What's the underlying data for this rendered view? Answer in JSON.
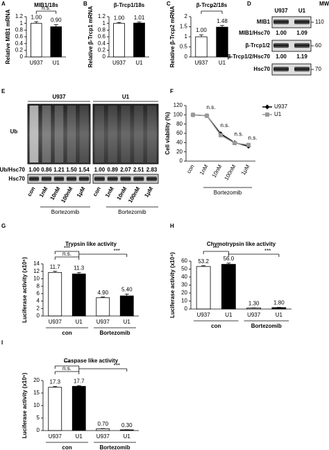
{
  "chart_data": [
    {
      "panel": "A",
      "type": "bar",
      "title": "MIB1/18s",
      "y_label": "Relative MIB1 mRNA",
      "categories": [
        "U937",
        "U1"
      ],
      "values": [
        1.0,
        0.9
      ],
      "value_labels": [
        "1.00",
        "0.90"
      ],
      "errors": [
        0.05,
        0.06
      ],
      "colors": [
        "#ffffff",
        "#000000"
      ],
      "ylim": [
        0,
        1.2
      ],
      "yticks": [
        0,
        0.2,
        0.4,
        0.6,
        0.8,
        1,
        1.2
      ],
      "significance": [
        "n.s."
      ]
    },
    {
      "panel": "B",
      "type": "bar",
      "title": "β-Trcp1/18s",
      "y_label": "Relative β-Trcp1 mRNA",
      "categories": [
        "U937",
        "U1"
      ],
      "values": [
        1.0,
        1.01
      ],
      "value_labels": [
        "1.00",
        "1.01"
      ],
      "errors": [
        0.03,
        0.03
      ],
      "colors": [
        "#ffffff",
        "#000000"
      ],
      "ylim": [
        0,
        1.2
      ],
      "yticks": [
        0,
        0.2,
        0.4,
        0.6,
        0.8,
        1,
        1.2
      ]
    },
    {
      "panel": "C",
      "type": "bar",
      "title": "β-Trcp2/18s",
      "y_label": "Relative β-Trcp2 mRNA",
      "categories": [
        "U937",
        "U1"
      ],
      "values": [
        1.0,
        1.48
      ],
      "value_labels": [
        "1.00",
        "1.48"
      ],
      "errors": [
        0.1,
        0.08
      ],
      "colors": [
        "#ffffff",
        "#000000"
      ],
      "ylim": [
        0,
        2
      ],
      "yticks": [
        0,
        0.5,
        1,
        1.5,
        2
      ],
      "significance": [
        "*"
      ]
    },
    {
      "panel": "F",
      "type": "line",
      "y_label": "Cell viability (%)",
      "x_label": "Bortezomib",
      "categories": [
        "con",
        "1nM",
        "10nM",
        "100nM",
        "1μM"
      ],
      "series": [
        {
          "name": "U937",
          "color": "#000000",
          "marker": "diamond",
          "values": [
            100,
            98,
            59,
            40,
            32
          ]
        },
        {
          "name": "U1",
          "color": "#999999",
          "marker": "square",
          "values": [
            100,
            98,
            56,
            39,
            35
          ]
        }
      ],
      "ylim": [
        0,
        120
      ],
      "yticks": [
        0,
        20,
        40,
        60,
        80,
        100,
        120
      ],
      "annotations": [
        "n.s.",
        "n.s.",
        "n.s.",
        "n.s."
      ],
      "legend": "right"
    },
    {
      "panel": "G",
      "type": "bar",
      "title": "Trypsin like activity",
      "y_label": "Luciferase activity (x10⁵)",
      "categories": [
        "U937",
        "U1",
        "U937",
        "U1"
      ],
      "groups": [
        "con",
        "Bortezomib"
      ],
      "values": [
        11.7,
        11.3,
        4.9,
        5.4
      ],
      "value_labels": [
        "11.7",
        "11.3",
        "4.90",
        "5.40"
      ],
      "errors": [
        0.3,
        0.4,
        0.2,
        0.5
      ],
      "colors": [
        "#ffffff",
        "#000000",
        "#ffffff",
        "#000000"
      ],
      "ylim": [
        0,
        14
      ],
      "yticks": [
        0,
        2,
        4,
        6,
        8,
        10,
        12,
        14
      ],
      "significance": [
        "***",
        "n.s.",
        "***"
      ]
    },
    {
      "panel": "H",
      "type": "bar",
      "title": "Chymotrypsin like activity",
      "y_label": "Luciferase activity (x10⁴)",
      "categories": [
        "U937",
        "U1",
        "U937",
        "U1"
      ],
      "groups": [
        "con",
        "Bortezomib"
      ],
      "values": [
        53.2,
        56.0,
        1.3,
        1.8
      ],
      "value_labels": [
        "53.2",
        "56.0",
        "1.30",
        "1.80"
      ],
      "errors": [
        1,
        1.5,
        0.2,
        0.3
      ],
      "colors": [
        "#ffffff",
        "#000000",
        "#ffffff",
        "#000000"
      ],
      "ylim": [
        0,
        60
      ],
      "yticks": [
        0,
        10,
        20,
        30,
        40,
        50,
        60
      ],
      "significance": [
        "***",
        "***"
      ]
    },
    {
      "panel": "I",
      "type": "bar",
      "title": "Caspase like activity",
      "y_label": "Luciferase activity (x10⁵)",
      "categories": [
        "U937",
        "U1",
        "U937",
        "U1"
      ],
      "groups": [
        "con",
        "Bortezomib"
      ],
      "values": [
        17.3,
        17.7,
        0.7,
        0.3
      ],
      "value_labels": [
        "17.3",
        "17.7",
        "0.70",
        "0.30"
      ],
      "errors": [
        0.3,
        0.3,
        0.1,
        0.05
      ],
      "colors": [
        "#ffffff",
        "#000000",
        "#ffffff",
        "#000000"
      ],
      "ylim": [
        0,
        20
      ],
      "yticks": [
        0,
        5,
        10,
        15,
        20
      ],
      "significance": [
        "***",
        "n.s.",
        "***"
      ]
    }
  ],
  "blots": {
    "D": {
      "panel": "D",
      "columns": [
        "U937",
        "U1"
      ],
      "mw_header": "MW",
      "rows": [
        {
          "label": "MIB1",
          "mw": "110",
          "ratio_label": "MIB1/Hsc70",
          "ratios": [
            "1.00",
            "1.09"
          ]
        },
        {
          "label": "β-Trcp1/2",
          "mw": "60",
          "ratio_label": "β-Trcp1/2/Hsc70",
          "ratios": [
            "1.00",
            "1.19"
          ]
        },
        {
          "label": "Hsc70",
          "mw": "70"
        }
      ]
    },
    "E": {
      "panel": "E",
      "blot_label": "Ub",
      "ratio_label": "Ub/Hsc70",
      "loading_label": "Hsc70",
      "treatment": "Bortezomib",
      "groups": [
        {
          "name": "U937",
          "lanes": [
            "con",
            "1nM",
            "10nM",
            "100nM",
            "1μM"
          ],
          "ratios": [
            "1.00",
            "0.86",
            "1.21",
            "1.50",
            "1.54"
          ]
        },
        {
          "name": "U1",
          "lanes": [
            "con",
            "1nM",
            "10nM",
            "100nM",
            "1μM"
          ],
          "ratios": [
            "1.00",
            "0.89",
            "2.07",
            "2.51",
            "2.83"
          ]
        }
      ]
    }
  }
}
